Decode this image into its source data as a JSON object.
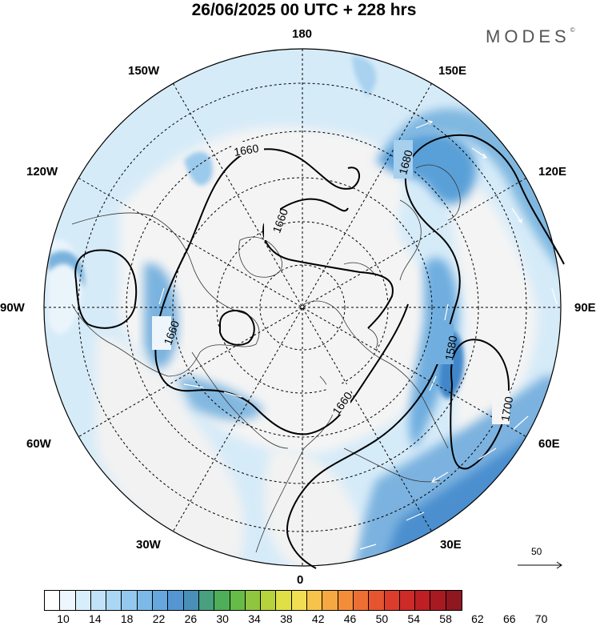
{
  "title": "26/06/2025  00 UTC  + 228 hrs",
  "brand": "MODES",
  "brand_mark": "©",
  "longitude_labels": {
    "n180": "180",
    "w150": "150W",
    "e150": "150E",
    "w120": "120W",
    "e120": "120E",
    "w90": "90W",
    "e90": "90E",
    "w60": "60W",
    "e60": "60E",
    "w30": "30W",
    "e30": "30E",
    "s0": "0"
  },
  "contour_labels": {
    "a": "1660",
    "b": "1660",
    "c": "1680",
    "d": "1660",
    "e": "1580",
    "f": "1660",
    "g": "1700"
  },
  "reference_vector": "50",
  "colorbar": {
    "labels": [
      "10",
      "14",
      "18",
      "22",
      "26",
      "30",
      "34",
      "38",
      "42",
      "46",
      "50",
      "54",
      "58",
      "62",
      "66",
      "70"
    ],
    "colors": [
      "#ffffff",
      "#eef7fd",
      "#d8eefb",
      "#c2e3f7",
      "#aad7f3",
      "#93c9ee",
      "#7cb9e6",
      "#66a8dd",
      "#5596d2",
      "#4a8fb8",
      "#48a07e",
      "#4eae5a",
      "#67bb48",
      "#8fc540",
      "#b6d23c",
      "#dfe045",
      "#f2de52",
      "#f6c44a",
      "#f6a842",
      "#f48d3a",
      "#ee6f33",
      "#e6552f",
      "#dc3c2b",
      "#cd2a28",
      "#bd1f25",
      "#a81a22",
      "#8e1720"
    ]
  }
}
